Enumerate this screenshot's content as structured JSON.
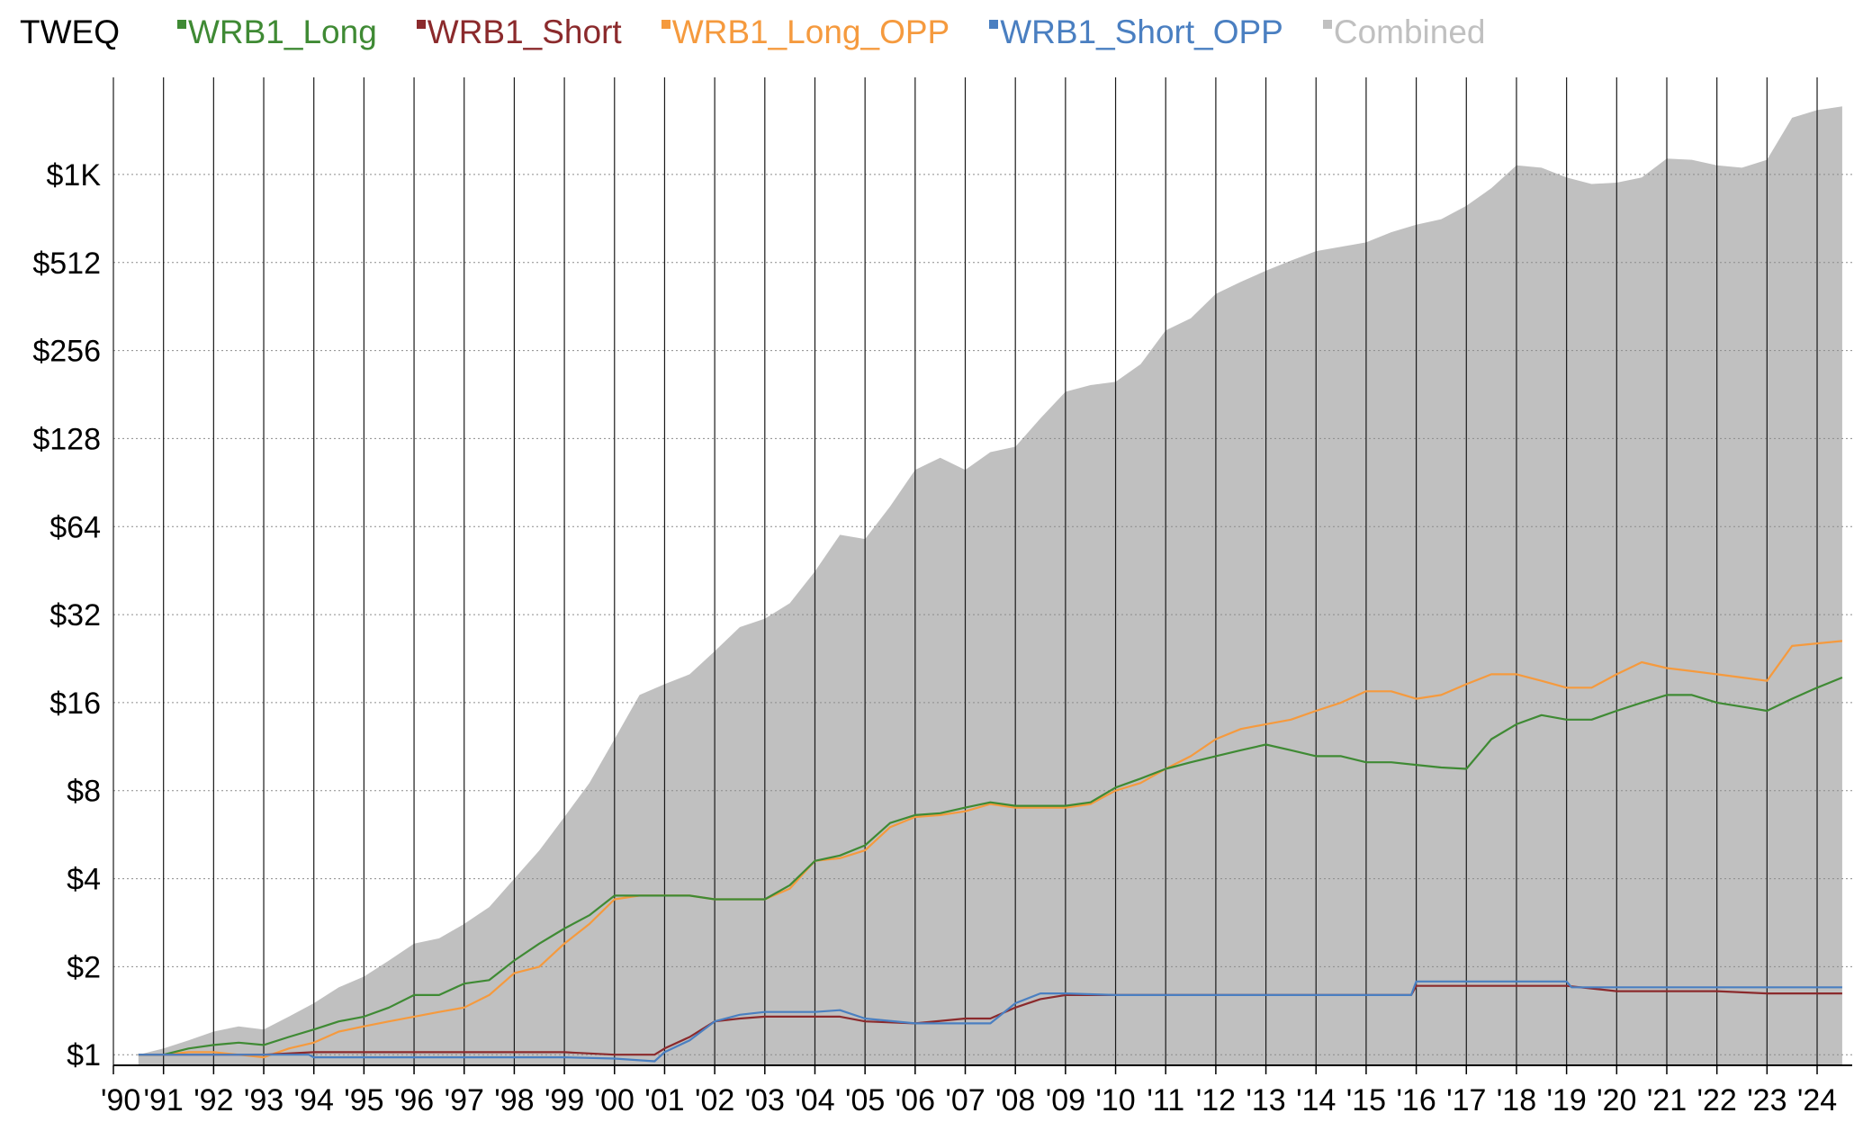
{
  "legend": {
    "title": "TWEQ",
    "items": [
      {
        "label": "WRB1_Long",
        "color": "#3f8a34"
      },
      {
        "label": "WRB1_Short",
        "color": "#8b2a2c"
      },
      {
        "label": "WRB1_Long_OPP",
        "color": "#f59a3e"
      },
      {
        "label": "WRB1_Short_OPP",
        "color": "#4a7fc1"
      },
      {
        "label": "Combined",
        "color": "#c0c0c0"
      }
    ]
  },
  "chart_data": {
    "type": "area",
    "title": "TWEQ",
    "y_scale": "log2",
    "ylim": [
      0.92,
      2200
    ],
    "xlim": [
      1990.0,
      2024.7
    ],
    "y_ticks": [
      {
        "value": 1,
        "label": "$1"
      },
      {
        "value": 2,
        "label": "$2"
      },
      {
        "value": 4,
        "label": "$4"
      },
      {
        "value": 8,
        "label": "$8"
      },
      {
        "value": 16,
        "label": "$16"
      },
      {
        "value": 32,
        "label": "$32"
      },
      {
        "value": 64,
        "label": "$64"
      },
      {
        "value": 128,
        "label": "$128"
      },
      {
        "value": 256,
        "label": "$256"
      },
      {
        "value": 512,
        "label": "$512"
      },
      {
        "value": 1024,
        "label": "$1K"
      }
    ],
    "x_ticks": [
      {
        "value": 1990,
        "label": "'90"
      },
      {
        "value": 1991,
        "label": "'91"
      },
      {
        "value": 1992,
        "label": "'92"
      },
      {
        "value": 1993,
        "label": "'93"
      },
      {
        "value": 1994,
        "label": "'94"
      },
      {
        "value": 1995,
        "label": "'95"
      },
      {
        "value": 1996,
        "label": "'96"
      },
      {
        "value": 1997,
        "label": "'97"
      },
      {
        "value": 1998,
        "label": "'98"
      },
      {
        "value": 1999,
        "label": "'99"
      },
      {
        "value": 2000,
        "label": "'00"
      },
      {
        "value": 2001,
        "label": "'01"
      },
      {
        "value": 2002,
        "label": "'02"
      },
      {
        "value": 2003,
        "label": "'03"
      },
      {
        "value": 2004,
        "label": "'04"
      },
      {
        "value": 2005,
        "label": "'05"
      },
      {
        "value": 2006,
        "label": "'06"
      },
      {
        "value": 2007,
        "label": "'07"
      },
      {
        "value": 2008,
        "label": "'08"
      },
      {
        "value": 2009,
        "label": "'09"
      },
      {
        "value": 2010,
        "label": "'10"
      },
      {
        "value": 2011,
        "label": "'11"
      },
      {
        "value": 2012,
        "label": "'12"
      },
      {
        "value": 2013,
        "label": "'13"
      },
      {
        "value": 2014,
        "label": "'14"
      },
      {
        "value": 2015,
        "label": "'15"
      },
      {
        "value": 2016,
        "label": "'16"
      },
      {
        "value": 2017,
        "label": "'17"
      },
      {
        "value": 2018,
        "label": "'18"
      },
      {
        "value": 2019,
        "label": "'19"
      },
      {
        "value": 2020,
        "label": "'20"
      },
      {
        "value": 2021,
        "label": "'21"
      },
      {
        "value": 2022,
        "label": "'22"
      },
      {
        "value": 2023,
        "label": "'23"
      },
      {
        "value": 2024,
        "label": "'24"
      }
    ],
    "grid": {
      "vertical": true,
      "horizontal_dotted": true
    },
    "series": [
      {
        "name": "Combined",
        "kind": "area",
        "color": "#c0c0c0",
        "x": [
          1990.5,
          1991.0,
          1991.5,
          1992.0,
          1992.5,
          1993.0,
          1993.5,
          1994.0,
          1994.5,
          1995.0,
          1995.5,
          1996.0,
          1996.5,
          1997.0,
          1997.5,
          1998.0,
          1998.5,
          1999.0,
          1999.5,
          2000.0,
          2000.5,
          2001.0,
          2001.5,
          2002.0,
          2002.5,
          2003.0,
          2003.5,
          2004.0,
          2004.5,
          2005.0,
          2005.5,
          2006.0,
          2006.5,
          2007.0,
          2007.5,
          2008.0,
          2008.5,
          2009.0,
          2009.5,
          2010.0,
          2010.5,
          2011.0,
          2011.5,
          2012.0,
          2012.5,
          2013.0,
          2013.5,
          2014.0,
          2014.5,
          2015.0,
          2015.5,
          2016.0,
          2016.5,
          2017.0,
          2017.5,
          2018.0,
          2018.5,
          2019.0,
          2019.5,
          2020.0,
          2020.5,
          2021.0,
          2021.5,
          2022.0,
          2022.5,
          2023.0,
          2023.5,
          2024.0,
          2024.5
        ],
        "values": [
          1.0,
          1.05,
          1.12,
          1.2,
          1.25,
          1.22,
          1.35,
          1.5,
          1.7,
          1.85,
          2.1,
          2.4,
          2.5,
          2.8,
          3.2,
          4.0,
          5.0,
          6.5,
          8.5,
          12.0,
          17.0,
          18.5,
          20.0,
          24.0,
          29.0,
          31.0,
          35.0,
          45.0,
          60.0,
          58.0,
          75.0,
          100.0,
          110.0,
          100.0,
          115.0,
          120.0,
          150.0,
          185.0,
          195.0,
          200.0,
          230.0,
          300.0,
          330.0,
          400.0,
          440.0,
          480.0,
          520.0,
          560.0,
          580.0,
          600.0,
          650.0,
          690.0,
          720.0,
          800.0,
          920.0,
          1100.0,
          1080.0,
          1000.0,
          950.0,
          960.0,
          1000.0,
          1160.0,
          1150.0,
          1100.0,
          1080.0,
          1150.0,
          1600.0,
          1700.0,
          1750.0
        ]
      },
      {
        "name": "WRB1_Long_OPP",
        "kind": "line",
        "color": "#f59a3e",
        "x": [
          1990.5,
          1991.0,
          1991.5,
          1992.0,
          1992.5,
          1993.0,
          1993.5,
          1994.0,
          1994.5,
          1995.0,
          1995.5,
          1996.0,
          1996.5,
          1997.0,
          1997.5,
          1998.0,
          1998.5,
          1999.0,
          1999.5,
          2000.0,
          2000.5,
          2001.0,
          2001.5,
          2002.0,
          2002.5,
          2003.0,
          2003.5,
          2004.0,
          2004.5,
          2005.0,
          2005.5,
          2006.0,
          2006.5,
          2007.0,
          2007.5,
          2008.0,
          2008.5,
          2009.0,
          2009.5,
          2010.0,
          2010.5,
          2011.0,
          2011.5,
          2012.0,
          2012.5,
          2013.0,
          2013.5,
          2014.0,
          2014.5,
          2015.0,
          2015.5,
          2016.0,
          2016.5,
          2017.0,
          2017.5,
          2018.0,
          2018.5,
          2019.0,
          2019.5,
          2020.0,
          2020.5,
          2021.0,
          2021.5,
          2022.0,
          2022.5,
          2023.0,
          2023.5,
          2024.0,
          2024.5
        ],
        "values": [
          1.0,
          1.0,
          1.02,
          1.02,
          1.0,
          0.98,
          1.05,
          1.1,
          1.2,
          1.25,
          1.3,
          1.35,
          1.4,
          1.45,
          1.6,
          1.9,
          2.0,
          2.4,
          2.8,
          3.4,
          3.5,
          3.5,
          3.5,
          3.4,
          3.4,
          3.4,
          3.7,
          4.6,
          4.7,
          5.0,
          6.0,
          6.5,
          6.6,
          6.8,
          7.2,
          7.0,
          7.0,
          7.0,
          7.2,
          8.0,
          8.5,
          9.5,
          10.5,
          12.0,
          13.0,
          13.5,
          14.0,
          15.0,
          16.0,
          17.5,
          17.5,
          16.5,
          17.0,
          18.5,
          20.0,
          20.0,
          19.0,
          18.0,
          18.0,
          20.0,
          22.0,
          21.0,
          20.5,
          20.0,
          19.5,
          19.0,
          25.0,
          25.5,
          26.0
        ]
      },
      {
        "name": "WRB1_Long",
        "kind": "line",
        "color": "#3f8a34",
        "x": [
          1990.5,
          1991.0,
          1991.5,
          1992.0,
          1992.5,
          1993.0,
          1993.5,
          1994.0,
          1994.5,
          1995.0,
          1995.5,
          1996.0,
          1996.5,
          1997.0,
          1997.5,
          1998.0,
          1998.5,
          1999.0,
          1999.5,
          2000.0,
          2000.5,
          2001.0,
          2001.5,
          2002.0,
          2002.5,
          2003.0,
          2003.5,
          2004.0,
          2004.5,
          2005.0,
          2005.5,
          2006.0,
          2006.5,
          2007.0,
          2007.5,
          2008.0,
          2008.5,
          2009.0,
          2009.5,
          2010.0,
          2010.5,
          2011.0,
          2011.5,
          2012.0,
          2012.5,
          2013.0,
          2013.5,
          2014.0,
          2014.5,
          2015.0,
          2015.5,
          2016.0,
          2016.5,
          2017.0,
          2017.5,
          2018.0,
          2018.5,
          2019.0,
          2019.5,
          2020.0,
          2020.5,
          2021.0,
          2021.5,
          2022.0,
          2022.5,
          2023.0,
          2023.5,
          2024.0,
          2024.5
        ],
        "values": [
          1.0,
          1.0,
          1.05,
          1.08,
          1.1,
          1.08,
          1.15,
          1.22,
          1.3,
          1.35,
          1.45,
          1.6,
          1.6,
          1.75,
          1.8,
          2.1,
          2.4,
          2.7,
          3.0,
          3.5,
          3.5,
          3.5,
          3.5,
          3.4,
          3.4,
          3.4,
          3.8,
          4.6,
          4.8,
          5.2,
          6.2,
          6.6,
          6.7,
          7.0,
          7.3,
          7.1,
          7.1,
          7.1,
          7.3,
          8.2,
          8.8,
          9.5,
          10.0,
          10.5,
          11.0,
          11.5,
          11.0,
          10.5,
          10.5,
          10.0,
          10.0,
          9.8,
          9.6,
          9.5,
          12.0,
          13.5,
          14.5,
          14.0,
          14.0,
          15.0,
          16.0,
          17.0,
          17.0,
          16.0,
          15.5,
          15.0,
          16.5,
          18.0,
          19.5
        ]
      },
      {
        "name": "WRB1_Short",
        "kind": "line",
        "color": "#8b2a2c",
        "x": [
          1990.5,
          1991.0,
          1992.0,
          1993.0,
          1994.0,
          1995.0,
          1996.0,
          1997.0,
          1998.0,
          1999.0,
          2000.0,
          2000.8,
          2001.0,
          2001.5,
          2002.0,
          2002.5,
          2003.0,
          2004.0,
          2004.5,
          2005.0,
          2006.0,
          2007.0,
          2007.5,
          2008.0,
          2008.5,
          2009.0,
          2010.0,
          2011.0,
          2012.0,
          2013.0,
          2014.0,
          2015.0,
          2015.9,
          2016.0,
          2017.0,
          2018.0,
          2019.0,
          2020.0,
          2021.0,
          2022.0,
          2023.0,
          2024.0,
          2024.5
        ],
        "values": [
          1.0,
          1.0,
          1.0,
          1.0,
          1.02,
          1.02,
          1.02,
          1.02,
          1.02,
          1.02,
          1.0,
          1.0,
          1.05,
          1.15,
          1.3,
          1.33,
          1.35,
          1.35,
          1.35,
          1.3,
          1.28,
          1.33,
          1.33,
          1.45,
          1.55,
          1.6,
          1.6,
          1.6,
          1.6,
          1.6,
          1.6,
          1.6,
          1.6,
          1.72,
          1.72,
          1.72,
          1.72,
          1.65,
          1.65,
          1.65,
          1.62,
          1.62,
          1.62
        ]
      },
      {
        "name": "WRB1_Short_OPP",
        "kind": "line",
        "color": "#4a7fc1",
        "x": [
          1990.5,
          1991.0,
          1992.0,
          1993.0,
          1993.9,
          1994.0,
          1995.0,
          1996.0,
          1997.0,
          1998.0,
          1999.0,
          2000.0,
          2000.8,
          2001.0,
          2001.5,
          2002.0,
          2002.5,
          2003.0,
          2004.0,
          2004.5,
          2005.0,
          2006.0,
          2007.0,
          2007.5,
          2008.0,
          2008.5,
          2009.0,
          2010.0,
          2011.0,
          2012.0,
          2013.0,
          2014.0,
          2015.0,
          2015.9,
          2016.0,
          2017.0,
          2018.0,
          2019.0,
          2019.1,
          2020.0,
          2021.0,
          2022.0,
          2023.0,
          2024.0,
          2024.5
        ],
        "values": [
          1.0,
          1.0,
          1.0,
          1.0,
          1.0,
          0.98,
          0.98,
          0.98,
          0.98,
          0.98,
          0.98,
          0.97,
          0.95,
          1.02,
          1.12,
          1.3,
          1.37,
          1.4,
          1.4,
          1.42,
          1.33,
          1.28,
          1.28,
          1.28,
          1.5,
          1.62,
          1.62,
          1.6,
          1.6,
          1.6,
          1.6,
          1.6,
          1.6,
          1.6,
          1.78,
          1.78,
          1.78,
          1.78,
          1.7,
          1.7,
          1.7,
          1.7,
          1.7,
          1.7,
          1.7
        ]
      }
    ]
  }
}
